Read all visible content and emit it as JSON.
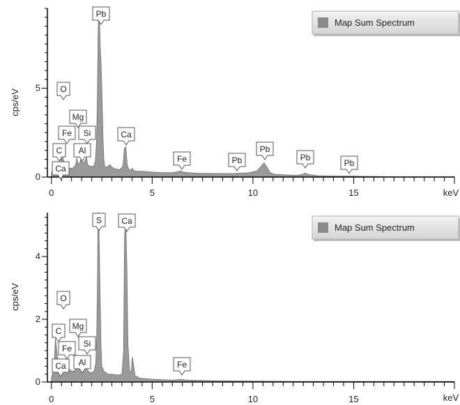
{
  "colors": {
    "spectrum_fill": "#9a9a9a",
    "spectrum_stroke": "#6e6e6e",
    "axis": "#000000",
    "legend_bg_top": "#f2f2f2",
    "legend_bg_bottom": "#d4d4d4",
    "legend_swatch": "#8a8a8a",
    "tag_stroke": "#555555"
  },
  "chart_data": [
    {
      "type": "area",
      "title": "",
      "xlabel": "keV",
      "ylabel": "cps/eV",
      "xlim": [
        -0.2,
        20.0
      ],
      "ylim": [
        0,
        9.5
      ],
      "x_ticks": [
        0,
        5,
        10,
        15
      ],
      "y_ticks": [
        0,
        5
      ],
      "grid": false,
      "legend": {
        "placement": "top-right",
        "entries": [
          "Map Sum Spectrum"
        ]
      },
      "series": [
        {
          "name": "Map Sum Spectrum",
          "x": [
            0.0,
            0.1,
            0.18,
            0.26,
            0.35,
            0.45,
            0.52,
            0.58,
            0.64,
            0.7,
            0.78,
            0.86,
            0.95,
            1.05,
            1.15,
            1.22,
            1.26,
            1.32,
            1.4,
            1.46,
            1.5,
            1.56,
            1.62,
            1.68,
            1.74,
            1.8,
            1.9,
            2.0,
            2.1,
            2.18,
            2.24,
            2.28,
            2.31,
            2.34,
            2.37,
            2.42,
            2.47,
            2.5,
            2.56,
            2.6,
            2.64,
            2.72,
            2.8,
            2.9,
            3.0,
            3.2,
            3.4,
            3.55,
            3.62,
            3.69,
            3.76,
            3.85,
            3.95,
            4.01,
            4.08,
            4.2,
            4.5,
            5.0,
            5.5,
            6.0,
            6.25,
            6.4,
            6.55,
            6.8,
            7.2,
            8.0,
            9.0,
            9.8,
            10.2,
            10.4,
            10.55,
            10.7,
            10.85,
            11.1,
            11.6,
            12.2,
            12.45,
            12.61,
            12.75,
            13.2,
            14.0,
            14.8,
            15.0,
            15.5,
            16.0,
            17.0,
            18.0,
            19.0,
            20.0
          ],
          "y": [
            0.2,
            0.6,
            0.6,
            0.4,
            0.6,
            0.8,
            1.3,
            1.0,
            0.8,
            0.7,
            0.6,
            0.5,
            0.5,
            0.5,
            0.6,
            0.75,
            1.1,
            0.7,
            0.8,
            1.0,
            0.9,
            0.8,
            0.85,
            0.95,
            1.1,
            0.7,
            0.6,
            0.6,
            0.6,
            0.9,
            2.0,
            4.5,
            7.5,
            9.8,
            9.6,
            7.5,
            6.2,
            5.0,
            2.2,
            1.0,
            0.6,
            0.55,
            0.6,
            0.7,
            0.55,
            0.45,
            0.42,
            0.6,
            1.6,
            1.7,
            0.7,
            0.4,
            0.4,
            0.5,
            0.38,
            0.33,
            0.33,
            0.28,
            0.25,
            0.25,
            0.3,
            0.34,
            0.28,
            0.25,
            0.22,
            0.2,
            0.2,
            0.24,
            0.35,
            0.6,
            0.8,
            0.55,
            0.25,
            0.15,
            0.12,
            0.1,
            0.15,
            0.22,
            0.14,
            0.08,
            0.06,
            0.05,
            0.05,
            0.04,
            0.03,
            0.02,
            0.02,
            0.02,
            0.02
          ]
        }
      ],
      "annotations": [
        {
          "label": "Pb",
          "x": 2.35
        },
        {
          "label": "O",
          "x": 0.53
        },
        {
          "label": "Mg",
          "x": 1.25
        },
        {
          "label": "Fe",
          "x": 0.7
        },
        {
          "label": "Si",
          "x": 1.74
        },
        {
          "label": "C",
          "x": 0.28
        },
        {
          "label": "Al",
          "x": 1.49
        },
        {
          "label": "Ca",
          "x": 0.34
        },
        {
          "label": "Ca",
          "x": 3.69
        },
        {
          "label": "Fe",
          "x": 6.4
        },
        {
          "label": "Pb",
          "x": 9.18
        },
        {
          "label": "Pb",
          "x": 10.55
        },
        {
          "label": "Pb",
          "x": 12.61
        },
        {
          "label": "Pb",
          "x": 14.77
        }
      ]
    },
    {
      "type": "area",
      "title": "",
      "xlabel": "keV",
      "ylabel": "cps/eV",
      "xlim": [
        -0.2,
        20.0
      ],
      "ylim": [
        0,
        5.4
      ],
      "x_ticks": [
        0,
        5,
        10,
        15
      ],
      "y_ticks": [
        0,
        2,
        4
      ],
      "grid": false,
      "legend": {
        "placement": "top-right",
        "entries": [
          "Map Sum Spectrum"
        ]
      },
      "series": [
        {
          "name": "Map Sum Spectrum",
          "x": [
            0.0,
            0.12,
            0.2,
            0.28,
            0.36,
            0.45,
            0.52,
            0.6,
            0.7,
            0.8,
            0.9,
            1.0,
            1.12,
            1.2,
            1.26,
            1.32,
            1.42,
            1.49,
            1.56,
            1.64,
            1.74,
            1.82,
            1.92,
            2.02,
            2.12,
            2.2,
            2.25,
            2.29,
            2.31,
            2.34,
            2.37,
            2.41,
            2.46,
            2.5,
            2.6,
            2.8,
            3.0,
            3.3,
            3.5,
            3.58,
            3.63,
            3.69,
            3.75,
            3.8,
            3.88,
            3.96,
            4.01,
            4.07,
            4.15,
            4.4,
            5.0,
            6.0,
            6.4,
            6.8,
            8.0,
            10.0,
            12.0,
            15.0,
            18.0,
            20.0
          ],
          "y": [
            0.15,
            0.4,
            1.4,
            0.9,
            0.6,
            0.5,
            0.55,
            0.7,
            0.55,
            0.45,
            0.4,
            0.35,
            0.35,
            0.4,
            0.5,
            0.45,
            0.45,
            0.5,
            0.45,
            0.42,
            0.45,
            0.35,
            0.3,
            0.3,
            0.35,
            0.6,
            1.5,
            3.5,
            5.5,
            5.5,
            4.5,
            3.0,
            1.2,
            0.5,
            0.35,
            0.25,
            0.25,
            0.22,
            0.25,
            1.0,
            4.6,
            5.2,
            3.5,
            1.2,
            0.35,
            0.3,
            0.8,
            0.6,
            0.2,
            0.12,
            0.09,
            0.06,
            0.08,
            0.06,
            0.04,
            0.03,
            0.02,
            0.02,
            0.02,
            0.02
          ]
        }
      ],
      "annotations": [
        {
          "label": "S",
          "x": 2.31
        },
        {
          "label": "Ca",
          "x": 3.69
        },
        {
          "label": "O",
          "x": 0.53
        },
        {
          "label": "C",
          "x": 0.28
        },
        {
          "label": "Mg",
          "x": 1.25
        },
        {
          "label": "Fe",
          "x": 0.7
        },
        {
          "label": "Si",
          "x": 1.74
        },
        {
          "label": "Ca",
          "x": 0.34
        },
        {
          "label": "Al",
          "x": 1.49
        },
        {
          "label": "Fe",
          "x": 6.4
        }
      ]
    }
  ]
}
